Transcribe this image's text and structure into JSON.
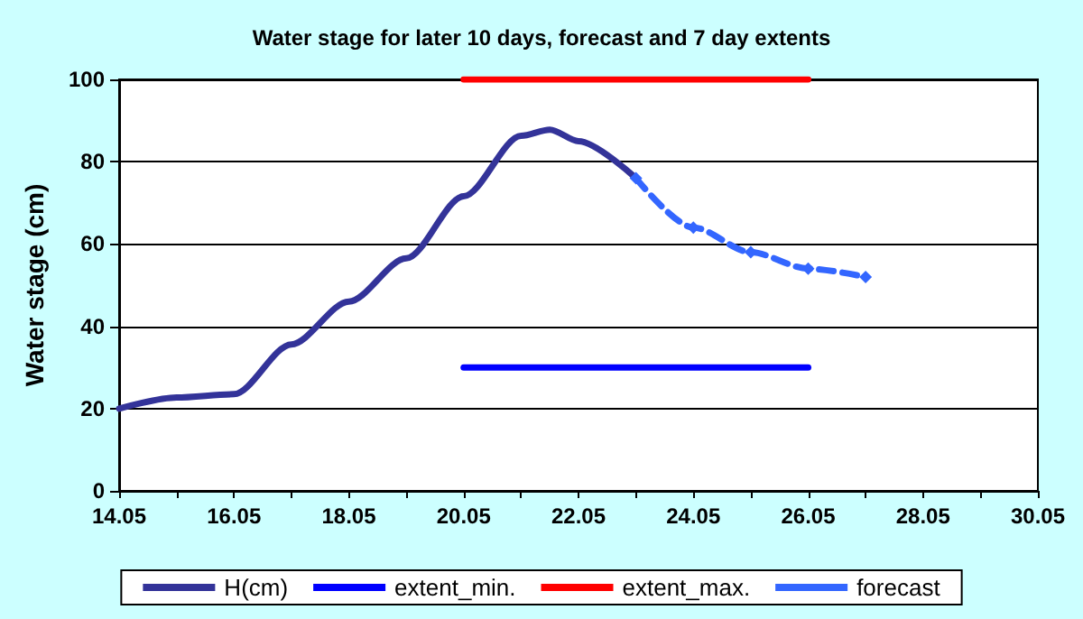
{
  "chart_data": {
    "type": "line",
    "title": "Water stage for later 10 days, forecast and 7 day extents",
    "ylabel": "Water stage (cm)",
    "series": [
      {
        "name": "H(cm)",
        "color": "#333399",
        "marker": "none",
        "line_style": "solid",
        "x": [
          "--05-14",
          "--05-15",
          "--05-16",
          "--05-17",
          "--05-18",
          "--05-19",
          "--05-20",
          "--05-21",
          "--05-21T12:00",
          "--05-22",
          "--05-23"
        ],
        "values": [
          20,
          22.7,
          23.5,
          35.6,
          46,
          56.5,
          71.6,
          86.3,
          87.8,
          85,
          76
        ]
      },
      {
        "name": "extent_min.",
        "color": "#0000ff",
        "marker": "none",
        "line_style": "solid",
        "x": [
          "--05-20",
          "--05-26"
        ],
        "values": [
          30,
          30
        ]
      },
      {
        "name": "extent_max.",
        "color": "#ff0000",
        "marker": "none",
        "line_style": "solid",
        "x": [
          "--05-20",
          "--05-26"
        ],
        "values": [
          100,
          100
        ]
      },
      {
        "name": "forecast",
        "color": "#3366ff",
        "marker": "diamond",
        "line_style": "dashed",
        "x": [
          "--05-23",
          "--05-24",
          "--05-25",
          "--05-26",
          "--05-27"
        ],
        "values": [
          76,
          64,
          58,
          54,
          52
        ]
      }
    ],
    "xlim": [
      "--05-14",
      "--05-30"
    ],
    "xticks": [
      {
        "value": "--05-14",
        "label": "14.05"
      },
      {
        "value": "--05-15",
        "label": null
      },
      {
        "value": "--05-16",
        "label": "16.05"
      },
      {
        "value": "--05-17",
        "label": null
      },
      {
        "value": "--05-18",
        "label": "18.05"
      },
      {
        "value": "--05-19",
        "label": null
      },
      {
        "value": "--05-20",
        "label": "20.05"
      },
      {
        "value": "--05-21",
        "label": null
      },
      {
        "value": "--05-22",
        "label": "22.05"
      },
      {
        "value": "--05-23",
        "label": null
      },
      {
        "value": "--05-24",
        "label": "24.05"
      },
      {
        "value": "--05-25",
        "label": null
      },
      {
        "value": "--05-26",
        "label": "26.05"
      },
      {
        "value": "--05-27",
        "label": null
      },
      {
        "value": "--05-28",
        "label": "28.05"
      },
      {
        "value": "--05-29",
        "label": null
      },
      {
        "value": "--05-30",
        "label": "30.05"
      }
    ],
    "ylim": [
      0,
      100
    ],
    "yticks": [
      0,
      20,
      40,
      60,
      80,
      100
    ],
    "grid": "y",
    "legend": "bottom"
  }
}
